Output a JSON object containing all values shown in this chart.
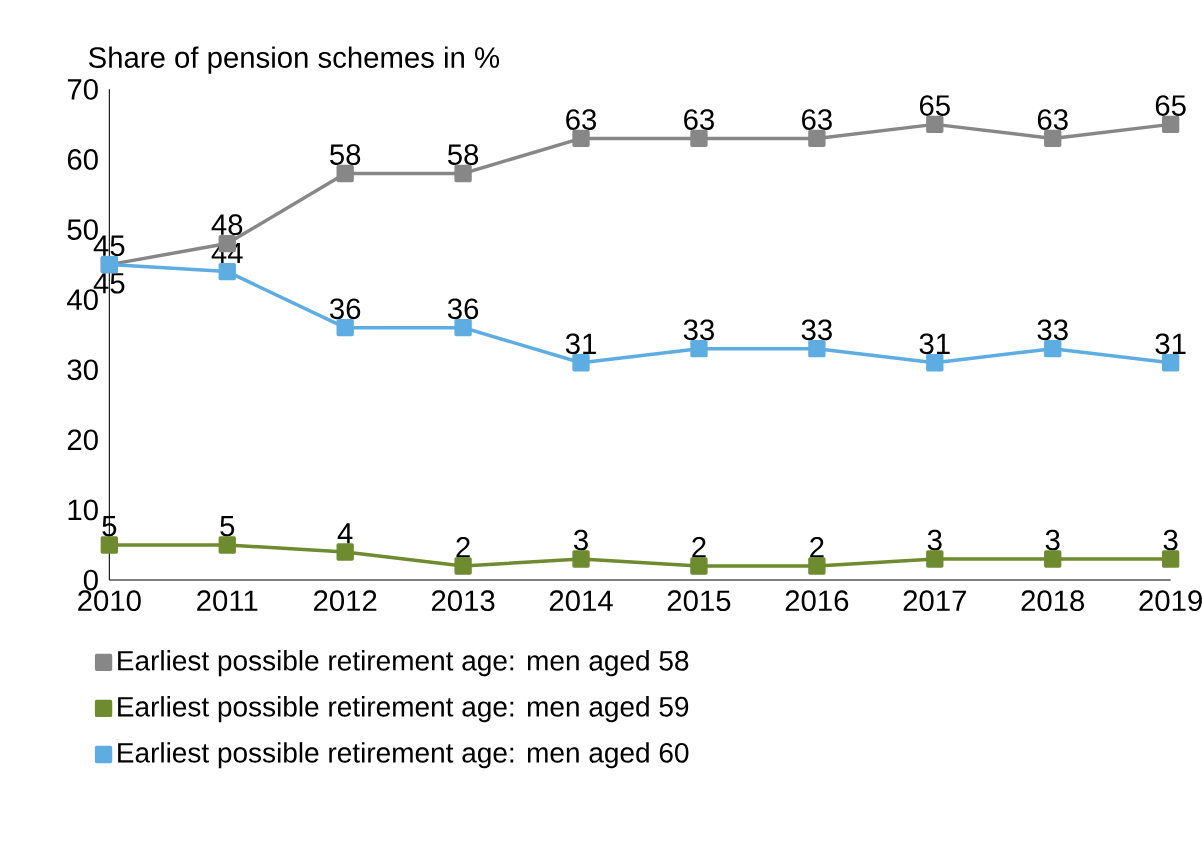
{
  "chart_data": {
    "type": "line",
    "ylabel": "Share of pension schemes in %",
    "x": [
      2010,
      2011,
      2012,
      2013,
      2014,
      2015,
      2016,
      2017,
      2018,
      2019
    ],
    "series": [
      {
        "name": "Earliest possible retirement age: men aged 58",
        "color": "#878787",
        "values": [
          45,
          48,
          58,
          58,
          63,
          63,
          63,
          65,
          63,
          65
        ]
      },
      {
        "name": "Earliest possible retirement age: men aged 59",
        "color": "#6e8b2f",
        "values": [
          5,
          5,
          4,
          2,
          3,
          2,
          2,
          3,
          3,
          3
        ]
      },
      {
        "name": "Earliest possible retirement age: men aged 60",
        "color": "#5dade2",
        "values": [
          45,
          44,
          36,
          36,
          31,
          33,
          33,
          31,
          33,
          31
        ]
      }
    ],
    "xlim": [
      2010,
      2019
    ],
    "xticks": [
      2010,
      2011,
      2012,
      2013,
      2014,
      2015,
      2016,
      2017,
      2018,
      2019
    ],
    "ylim": [
      0,
      70
    ],
    "yticks": [
      0,
      10,
      20,
      30,
      40,
      50,
      60,
      70
    ],
    "data_labels": true,
    "marker": "square",
    "line_style": "solid",
    "legend": "bottom",
    "grid": false
  }
}
